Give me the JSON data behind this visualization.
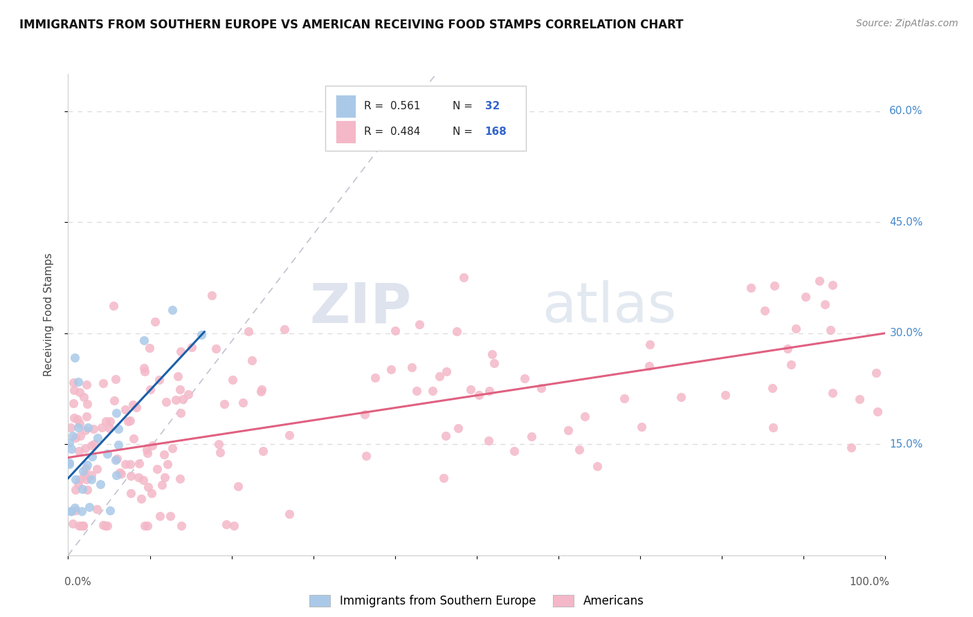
{
  "title": "IMMIGRANTS FROM SOUTHERN EUROPE VS AMERICAN RECEIVING FOOD STAMPS CORRELATION CHART",
  "source": "Source: ZipAtlas.com",
  "ylabel": "Receiving Food Stamps",
  "xlim": [
    0.0,
    1.0
  ],
  "ylim": [
    0.0,
    0.65
  ],
  "ytick_positions": [
    0.15,
    0.3,
    0.45,
    0.6
  ],
  "ytick_labels": [
    "15.0%",
    "30.0%",
    "45.0%",
    "60.0%"
  ],
  "legend_r_blue": "0.561",
  "legend_n_blue": "32",
  "legend_r_pink": "0.484",
  "legend_n_pink": "168",
  "blue_color": "#aac9e8",
  "pink_color": "#f4b8c8",
  "blue_line_color": "#1a5fa8",
  "pink_line_color": "#e06080",
  "watermark_zip": "ZIP",
  "watermark_atlas": "atlas",
  "background_color": "#ffffff",
  "grid_color": "#dddddd",
  "title_fontsize": 12,
  "source_fontsize": 10
}
